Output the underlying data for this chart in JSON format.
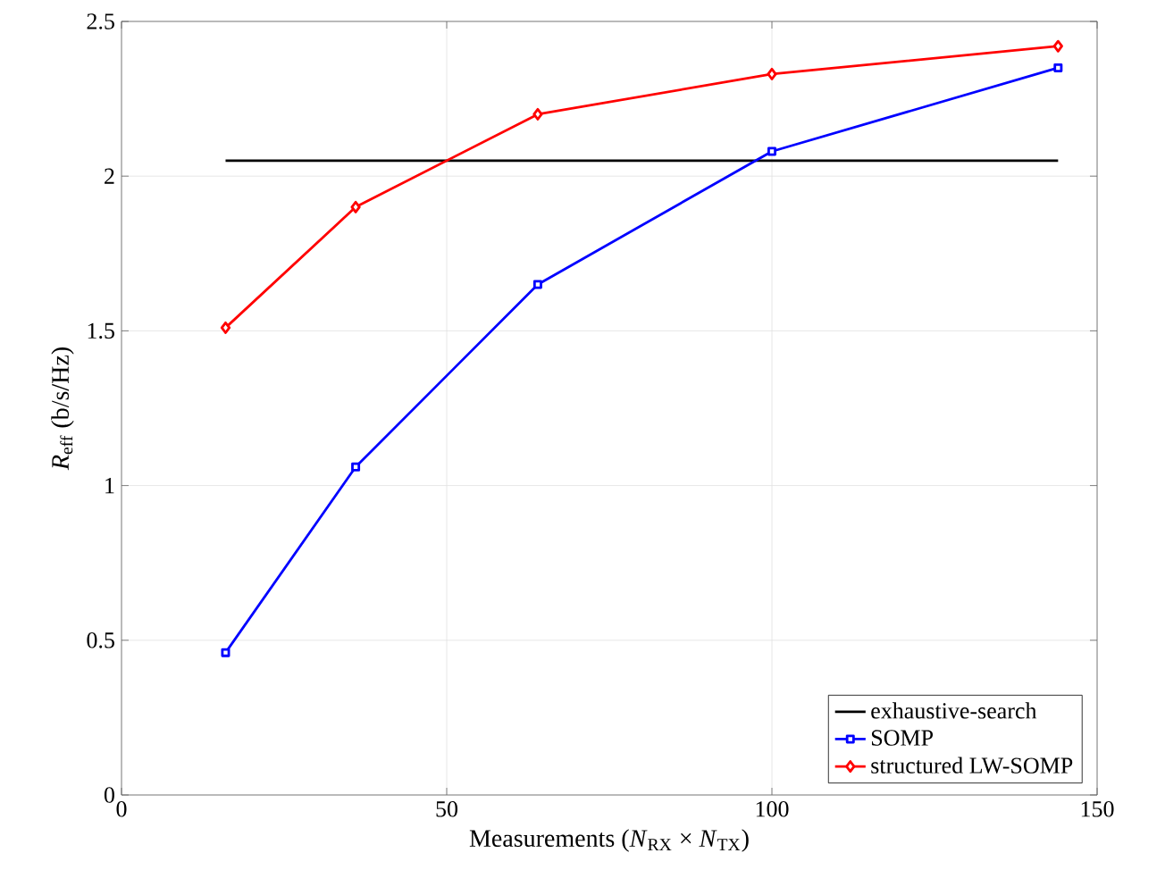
{
  "chart_data": {
    "type": "line",
    "xlabel": "Measurements (*N*$_{RX}$ × *N*$_{TX}$)",
    "ylabel": "*R*$_{eff}$ (b/s/Hz)",
    "xlim": [
      0,
      150
    ],
    "ylim": [
      0,
      2.5
    ],
    "xticks": [
      0,
      50,
      100,
      150
    ],
    "yticks": [
      0,
      0.5,
      1,
      1.5,
      2,
      2.5
    ],
    "grid": true,
    "legend": "bottom right",
    "series": [
      {
        "name": "exhaustive-search",
        "color": "#000000",
        "marker": "none",
        "x": [
          16,
          144
        ],
        "values": [
          2.05,
          2.05
        ]
      },
      {
        "name": "SOMP",
        "color": "#0000ff",
        "marker": "square",
        "x": [
          16,
          36,
          64,
          100,
          144
        ],
        "values": [
          0.46,
          1.06,
          1.65,
          2.08,
          2.35
        ]
      },
      {
        "name": "structured LW-SOMP",
        "color": "#ff0000",
        "marker": "diamond",
        "x": [
          16,
          36,
          64,
          100,
          144
        ],
        "values": [
          1.51,
          1.9,
          2.2,
          2.33,
          2.42
        ]
      }
    ]
  }
}
